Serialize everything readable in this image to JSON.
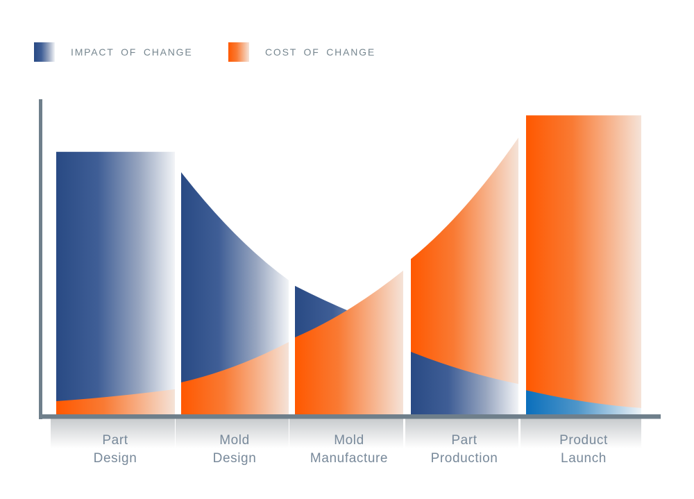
{
  "chart_data": {
    "type": "area",
    "title": "",
    "legend_position": "top-left",
    "grid": false,
    "categories": [
      "Part\nDesign",
      "Mold\nDesign",
      "Mold\nManufacture",
      "Part\nProduction",
      "Product\nLaunch"
    ],
    "series": [
      {
        "name": "IMPACT OF CHANGE",
        "color": "#294a84",
        "gradient": [
          [
            0,
            "#294a84"
          ],
          [
            0.35,
            "#3f5e96"
          ],
          [
            0.7,
            "#98a6c0"
          ],
          [
            1,
            "#f2f4f7"
          ]
        ],
        "values_by_column": [
          [
            84.7,
            84.7,
            84.7
          ],
          [
            78.2,
            58.5,
            43.6
          ],
          [
            41.8,
            33.7,
            27.1
          ],
          [
            20.7,
            14.7,
            10.4
          ],
          [
            8.4,
            4.8,
            2.7
          ]
        ]
      },
      {
        "name": "COST OF CHANGE",
        "color": "#ff5800",
        "gradient": [
          [
            0,
            "#ff5800"
          ],
          [
            0.4,
            "#f97a33"
          ],
          [
            1,
            "#f5e3d8"
          ]
        ],
        "values_by_column": [
          [
            4.9,
            6.5,
            8.7
          ],
          [
            10.9,
            16.1,
            23.8
          ],
          [
            25.3,
            34.4,
            46.7
          ],
          [
            50.4,
            67.1,
            89.3
          ],
          [
            96.4,
            96.4,
            96.4
          ]
        ]
      }
    ],
    "front_series_by_column": [
      "cost",
      "cost",
      "cost",
      "impact",
      "impact"
    ],
    "product_launch_impact_gradient": [
      [
        0,
        "#0a6fbc"
      ],
      [
        0.45,
        "#4f96c9"
      ],
      [
        1,
        "#edf3f7"
      ]
    ],
    "ylim": [
      0,
      100
    ],
    "axis_color": "#6f7f8b",
    "shadow_color": "#9aa0a4",
    "text_colors": {
      "legend": "#76868f",
      "category": "#78899a"
    }
  }
}
